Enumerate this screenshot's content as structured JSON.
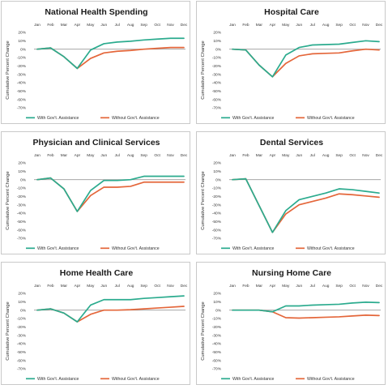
{
  "colors": {
    "with": "#2bab8e",
    "without": "#e4663a",
    "axis": "#9a9a9a"
  },
  "chart_data": [
    {
      "type": "line",
      "title": "National Health Spending",
      "ylabel": "Cumulative Percent Change",
      "categories": [
        "Jan",
        "Feb",
        "Mar",
        "Apr",
        "May",
        "Jun",
        "Jul",
        "Aug",
        "Sep",
        "Oct",
        "Nov",
        "Dec"
      ],
      "yticks": [
        "20%",
        "10%",
        "0%",
        "-10%",
        "-20%",
        "-30%",
        "-40%",
        "-50%",
        "-60%",
        "-70%"
      ],
      "ylim": [
        -70,
        20
      ],
      "series": [
        {
          "name": "With Gov't. Assistance",
          "values": [
            0,
            1.5,
            -9,
            -23,
            -1,
            6.5,
            8.5,
            9.5,
            11,
            12,
            13,
            13
          ]
        },
        {
          "name": "Without Gov't. Assistance",
          "values": [
            0,
            1.5,
            -9,
            -23,
            -11,
            -4.5,
            -2.5,
            -1.5,
            0,
            1,
            2,
            2
          ]
        }
      ]
    },
    {
      "type": "line",
      "title": "Hospital Care",
      "ylabel": "Cumulative Percent Change",
      "categories": [
        "Jan",
        "Feb",
        "Mar",
        "Apr",
        "May",
        "Jun",
        "Jul",
        "Aug",
        "Sep",
        "Oct",
        "Nov",
        "Dec"
      ],
      "yticks": [
        "20%",
        "10%",
        "0%",
        "-10%",
        "-20%",
        "-30%",
        "-40%",
        "-50%",
        "-60%",
        "-70%"
      ],
      "ylim": [
        -70,
        20
      ],
      "series": [
        {
          "name": "With Gov't. Assistance",
          "values": [
            0,
            -1,
            -19,
            -33,
            -7,
            2,
            5,
            5.5,
            6,
            8,
            10,
            9
          ]
        },
        {
          "name": "Without Gov't. Assistance",
          "values": [
            0,
            -1,
            -19,
            -33,
            -17,
            -8,
            -5.5,
            -5,
            -4.5,
            -2,
            0,
            -1
          ]
        }
      ]
    },
    {
      "type": "line",
      "title": "Physician and Clinical Services",
      "ylabel": "Cumulative Percent Change",
      "categories": [
        "Jan",
        "Feb",
        "Mar",
        "Apr",
        "May",
        "Jun",
        "Jul",
        "Aug",
        "Sep",
        "Oct",
        "Nov",
        "Dec"
      ],
      "yticks": [
        "20%",
        "10%",
        "0%",
        "-10%",
        "-20%",
        "-30%",
        "-40%",
        "-50%",
        "-60%",
        "-70%"
      ],
      "ylim": [
        -70,
        20
      ],
      "series": [
        {
          "name": "With Gov't. Assistance",
          "values": [
            0,
            2,
            -11,
            -38,
            -13,
            -1,
            -1,
            0,
            4,
            4,
            4,
            4
          ]
        },
        {
          "name": "Without Gov't. Assistance",
          "values": [
            0,
            2,
            -11,
            -38,
            -19,
            -9,
            -9,
            -8,
            -3,
            -3,
            -3,
            -3
          ]
        }
      ]
    },
    {
      "type": "line",
      "title": "Dental Services",
      "ylabel": "Cumulative Percent Change",
      "categories": [
        "Jan",
        "Feb",
        "Mar",
        "Apr",
        "May",
        "Jun",
        "Jul",
        "Aug",
        "Sep",
        "Oct",
        "Nov",
        "Dec"
      ],
      "yticks": [
        "20%",
        "10%",
        "0%",
        "-10%",
        "-20%",
        "-30%",
        "-40%",
        "-50%",
        "-60%",
        "-70%"
      ],
      "ylim": [
        -70,
        20
      ],
      "series": [
        {
          "name": "With Gov't. Assistance",
          "values": [
            0,
            1,
            -31,
            -63,
            -37,
            -24,
            -20,
            -16,
            -11,
            -12,
            -14,
            -16
          ]
        },
        {
          "name": "Without Gov't. Assistance",
          "values": [
            0,
            1,
            -31,
            -63,
            -41,
            -30,
            -26,
            -22,
            -17,
            -18,
            -19.5,
            -21
          ]
        }
      ]
    },
    {
      "type": "line",
      "title": "Home Health Care",
      "ylabel": "Cumulative Percent Change",
      "categories": [
        "Jan",
        "Feb",
        "Mar",
        "Apr",
        "May",
        "Jun",
        "Jul",
        "Aug",
        "Sep",
        "Oct",
        "Nov",
        "Dec"
      ],
      "yticks": [
        "20%",
        "10%",
        "0%",
        "-10%",
        "-20%",
        "-30%",
        "-40%",
        "-50%",
        "-60%",
        "-70%"
      ],
      "ylim": [
        -70,
        20
      ],
      "series": [
        {
          "name": "With Gov't. Assistance",
          "values": [
            0,
            1.5,
            -3.5,
            -14,
            6,
            12.5,
            12.5,
            12.5,
            14,
            15,
            16,
            17
          ]
        },
        {
          "name": "Without Gov't. Assistance",
          "values": [
            0,
            1.5,
            -3.5,
            -14,
            -5,
            0,
            0,
            0.5,
            1.5,
            2.5,
            3.5,
            4.5
          ]
        }
      ]
    },
    {
      "type": "line",
      "title": "Nursing Home Care",
      "ylabel": "Cumulative Percent Change",
      "categories": [
        "Jan",
        "Feb",
        "Mar",
        "Apr",
        "May",
        "Jun",
        "Jul",
        "Aug",
        "Sep",
        "Oct",
        "Nov",
        "Dec"
      ],
      "yticks": [
        "20%",
        "10%",
        "0%",
        "-10%",
        "-20%",
        "-30%",
        "-40%",
        "-50%",
        "-60%",
        "-70%"
      ],
      "ylim": [
        -70,
        20
      ],
      "series": [
        {
          "name": "With Gov't. Assistance",
          "values": [
            0,
            0,
            0,
            -2,
            5,
            5,
            6,
            6.5,
            7,
            8.5,
            9.5,
            9
          ]
        },
        {
          "name": "Without Gov't. Assistance",
          "values": [
            0,
            0,
            0,
            -2,
            -9,
            -9.5,
            -9,
            -8.5,
            -8,
            -7,
            -6,
            -6.5
          ]
        }
      ]
    }
  ]
}
